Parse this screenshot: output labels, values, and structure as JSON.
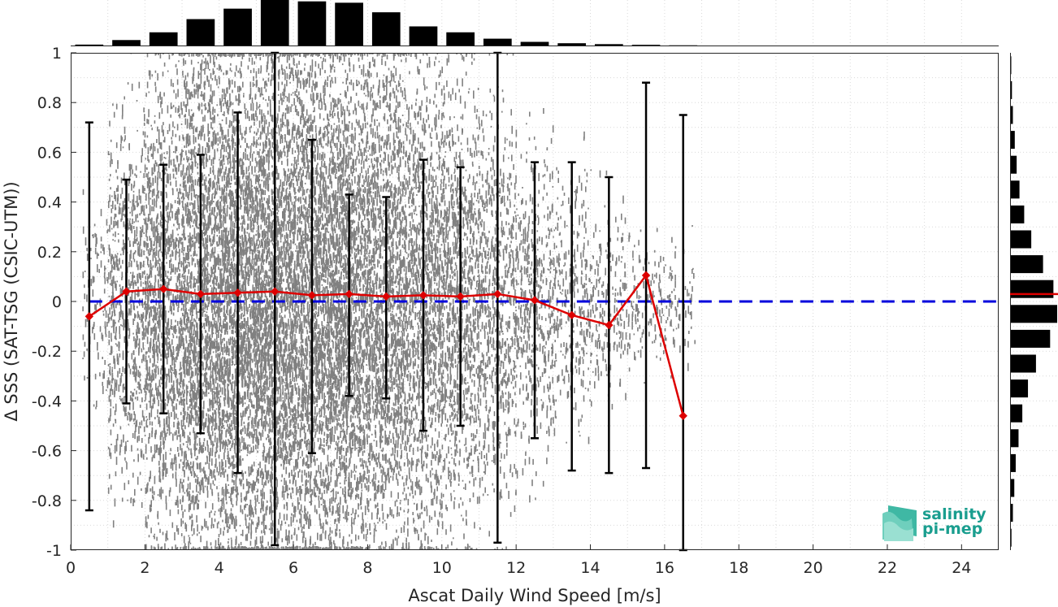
{
  "chart_data": {
    "type": "scatter",
    "xlabel": "Ascat Daily Wind Speed [m/s]",
    "ylabel": "Δ SSS (SAT-TSG (CSIC-UTM))",
    "xlim": [
      0,
      25
    ],
    "ylim": [
      -1,
      1
    ],
    "x_ticks": [
      0,
      2,
      4,
      6,
      8,
      10,
      12,
      14,
      16,
      18,
      20,
      22,
      24
    ],
    "x_tick_labels": [
      "0",
      "2",
      "4",
      "6",
      "8",
      "10",
      "12",
      "14",
      "16",
      "18",
      "20",
      "22",
      "24"
    ],
    "y_ticks": [
      1,
      0.8,
      0.6,
      0.4,
      0.2,
      0,
      -0.2,
      -0.4,
      -0.6,
      -0.8,
      -1
    ],
    "y_tick_labels": [
      "1",
      "0.8",
      "0.6",
      "0.4",
      "0.2",
      "0",
      "-0.2",
      "-0.4",
      "-0.6",
      "-0.8",
      "-1"
    ],
    "grid": true,
    "colors": {
      "scatter": "#808080",
      "mean_line": "#dd0000",
      "error_bars": "#000000",
      "zero_line": "#0000dd",
      "histogram": "#000000"
    },
    "binned_mean": {
      "x": [
        0.5,
        1.5,
        2.5,
        3.5,
        4.5,
        5.5,
        6.5,
        7.5,
        8.5,
        9.5,
        10.5,
        11.5,
        12.5,
        13.5,
        14.5,
        15.5,
        16.5
      ],
      "mean": [
        -0.06,
        0.04,
        0.05,
        0.03,
        0.035,
        0.04,
        0.025,
        0.03,
        0.02,
        0.025,
        0.02,
        0.03,
        0.005,
        -0.055,
        -0.095,
        0.105,
        -0.46
      ],
      "error_low": [
        -0.84,
        -0.41,
        -0.45,
        -0.53,
        -0.69,
        -0.98,
        -0.61,
        -0.38,
        -0.39,
        -0.52,
        -0.5,
        -0.97,
        -0.55,
        -0.68,
        -0.69,
        -0.67,
        -1.0
      ],
      "error_high": [
        0.72,
        0.49,
        0.55,
        0.59,
        0.76,
        1.0,
        0.65,
        0.43,
        0.42,
        0.57,
        0.54,
        1.0,
        0.56,
        0.56,
        0.5,
        0.88,
        0.75
      ]
    },
    "scatter_density": {
      "x_range": [
        0.3,
        16.8
      ],
      "spread_by_bin": [
        0.35,
        0.65,
        0.85,
        0.95,
        1.0,
        1.0,
        1.0,
        0.95,
        0.9,
        0.85,
        0.8,
        0.7,
        0.55,
        0.45,
        0.35,
        0.25,
        0.2
      ],
      "counts_relative": [
        0.05,
        0.3,
        0.55,
        0.85,
        0.95,
        1.0,
        0.95,
        0.9,
        0.75,
        0.6,
        0.45,
        0.3,
        0.2,
        0.12,
        0.07,
        0.04,
        0.02
      ]
    },
    "x_histogram": {
      "bin_centers": [
        0.5,
        1.5,
        2.5,
        3.5,
        4.5,
        5.5,
        6.5,
        7.5,
        8.5,
        9.5,
        10.5,
        11.5,
        12.5,
        13.5,
        14.5,
        15.5,
        16.5
      ],
      "relative_counts": [
        0.02,
        0.12,
        0.29,
        0.58,
        0.81,
        1.0,
        0.97,
        0.94,
        0.73,
        0.42,
        0.29,
        0.15,
        0.08,
        0.05,
        0.03,
        0.015,
        0.005
      ]
    },
    "y_histogram": {
      "bin_centers": [
        0.95,
        0.85,
        0.75,
        0.65,
        0.55,
        0.45,
        0.35,
        0.25,
        0.15,
        0.05,
        -0.05,
        -0.15,
        -0.25,
        -0.35,
        -0.45,
        -0.55,
        -0.65,
        -0.75,
        -0.85,
        -0.95
      ],
      "relative_counts": [
        0.02,
        0.04,
        0.06,
        0.1,
        0.14,
        0.2,
        0.3,
        0.45,
        0.7,
        0.92,
        1.0,
        0.85,
        0.55,
        0.38,
        0.26,
        0.18,
        0.12,
        0.09,
        0.06,
        0.03
      ],
      "mean": 0.03
    }
  },
  "logo": {
    "line1": "salinity",
    "line2": "pi-mep",
    "text_color": "#1a9e8f"
  }
}
